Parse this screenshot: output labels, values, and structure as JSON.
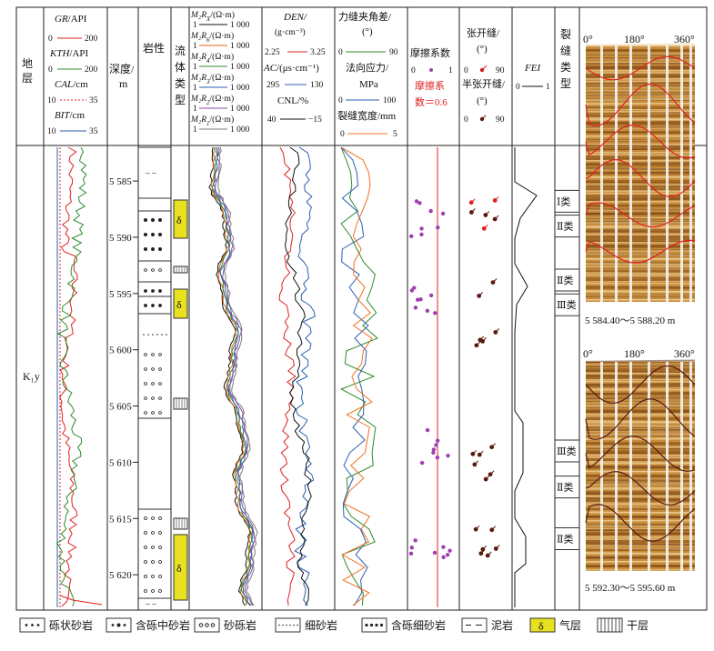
{
  "colors": {
    "GR": "#e02020",
    "KTH": "#2e8b2e",
    "CAL": "#e02020",
    "BIT": "#2a5fb0",
    "DEN": "#e02020",
    "AC": "#2a5fb0",
    "CNL": "#111111",
    "angle": "#2e8b2e",
    "stress": "#2a5fb0",
    "width": "#f07020",
    "friction_line": "#e02020",
    "friction_dot": "#a040b0",
    "gas": "#e8e020",
    "image_dark": "#4a2a0c",
    "image_light": "#e8c888"
  },
  "headers": {
    "strata": "地层",
    "gr": {
      "name": "GR",
      "unit": "/API",
      "min": "0",
      "max": "200"
    },
    "kth": {
      "name": "KTH",
      "unit": "/API",
      "min": "0",
      "max": "200"
    },
    "cal": {
      "name": "CAL",
      "unit": "/cm",
      "min": "10",
      "max": "35"
    },
    "bit": {
      "name": "BIT",
      "unit": "/cm",
      "min": "10",
      "max": "35"
    },
    "depth": "深度/",
    "depth_unit": "m",
    "lith": "岩性",
    "fluid": [
      "流",
      "体",
      "类",
      "型"
    ],
    "res": [
      {
        "name": "M₂R",
        "sub": "X",
        "unit": "/(Ω·m)",
        "scale": "1        1 000"
      },
      {
        "name": "M₂R",
        "sub": "6",
        "unit": "/(Ω·m)",
        "scale": "1        1 000"
      },
      {
        "name": "M₂R",
        "sub": "4",
        "unit": "/(Ω·m)",
        "scale": "1        1 000"
      },
      {
        "name": "M₂R",
        "sub": "3",
        "unit": "/(Ω·m)",
        "scale": "1        1 000"
      },
      {
        "name": "M₂R",
        "sub": "2",
        "unit": "/(Ω·m)",
        "scale": "1        1 000"
      },
      {
        "name": "M₂R",
        "sub": "1",
        "unit": "/(Ω·m)",
        "scale": "1        1 000"
      }
    ],
    "den": {
      "name": "DEN",
      "unit": "(g·cm⁻³)",
      "min": "2.25",
      "max": "3.25"
    },
    "ac": {
      "name": "AC",
      "unit": "/(μs·cm⁻¹)",
      "min": "295",
      "max": "130"
    },
    "cnl": {
      "name": "CNL/%",
      "min": "40",
      "max": "−15"
    },
    "frac_angle": {
      "name": "力缝夹角差/",
      "unit": "(°)",
      "min": "0",
      "max": "90"
    },
    "stress": {
      "name": "法向应力/",
      "unit": "MPa",
      "min": "0",
      "max": "100"
    },
    "fwidth": {
      "name": "裂缝宽度/mm",
      "min": "0",
      "max": "5"
    },
    "friction": {
      "name": "摩擦系数",
      "min": "0",
      "max": "1",
      "note1": "摩擦系",
      "note2": "数＝0.6"
    },
    "open": {
      "name": "张开缝/",
      "unit": "(°)",
      "min": "0",
      "max": "90"
    },
    "half": {
      "name": "半张开缝/",
      "unit": "(°)",
      "min": "0",
      "max": "90"
    },
    "fei": {
      "name": "FEI",
      "min": "0",
      "max": "1"
    },
    "ftype": [
      "裂",
      "缝",
      "类",
      "型"
    ],
    "img_axis": [
      "0°",
      "180°",
      "360°"
    ]
  },
  "strata_label": "K₁y",
  "depth_ticks": [
    "5 585",
    "5 590",
    "5 595",
    "5 600",
    "5 605",
    "5 610",
    "5 615",
    "5 620"
  ],
  "fracture_classes": [
    {
      "label": "Ⅰ类",
      "depth": 5586.8
    },
    {
      "label": "Ⅱ类",
      "depth": 5589.0
    },
    {
      "label": "Ⅱ类",
      "depth": 5593.8
    },
    {
      "label": "Ⅲ类",
      "depth": 5596.0
    },
    {
      "label": "Ⅲ类",
      "depth": 5609.0
    },
    {
      "label": "Ⅱ类",
      "depth": 5612.2
    },
    {
      "label": "Ⅱ类",
      "depth": 5616.8
    }
  ],
  "image1_caption": "5 584.40～5 588.20 m",
  "image2_caption": "5 592.30～5 595.60 m",
  "legend": [
    {
      "label": "砾状砂岩",
      "symbol": "dots3"
    },
    {
      "label": "含砾中砂岩",
      "symbol": "dotsmid"
    },
    {
      "label": "砂砾岩",
      "symbol": "circles"
    },
    {
      "label": "细砂岩",
      "symbol": "fine"
    },
    {
      "label": "含砾细砂岩",
      "symbol": "dots4"
    },
    {
      "label": "泥岩",
      "symbol": "dash"
    },
    {
      "label": "气层",
      "symbol": "gas"
    },
    {
      "label": "干层",
      "symbol": "dry"
    }
  ]
}
